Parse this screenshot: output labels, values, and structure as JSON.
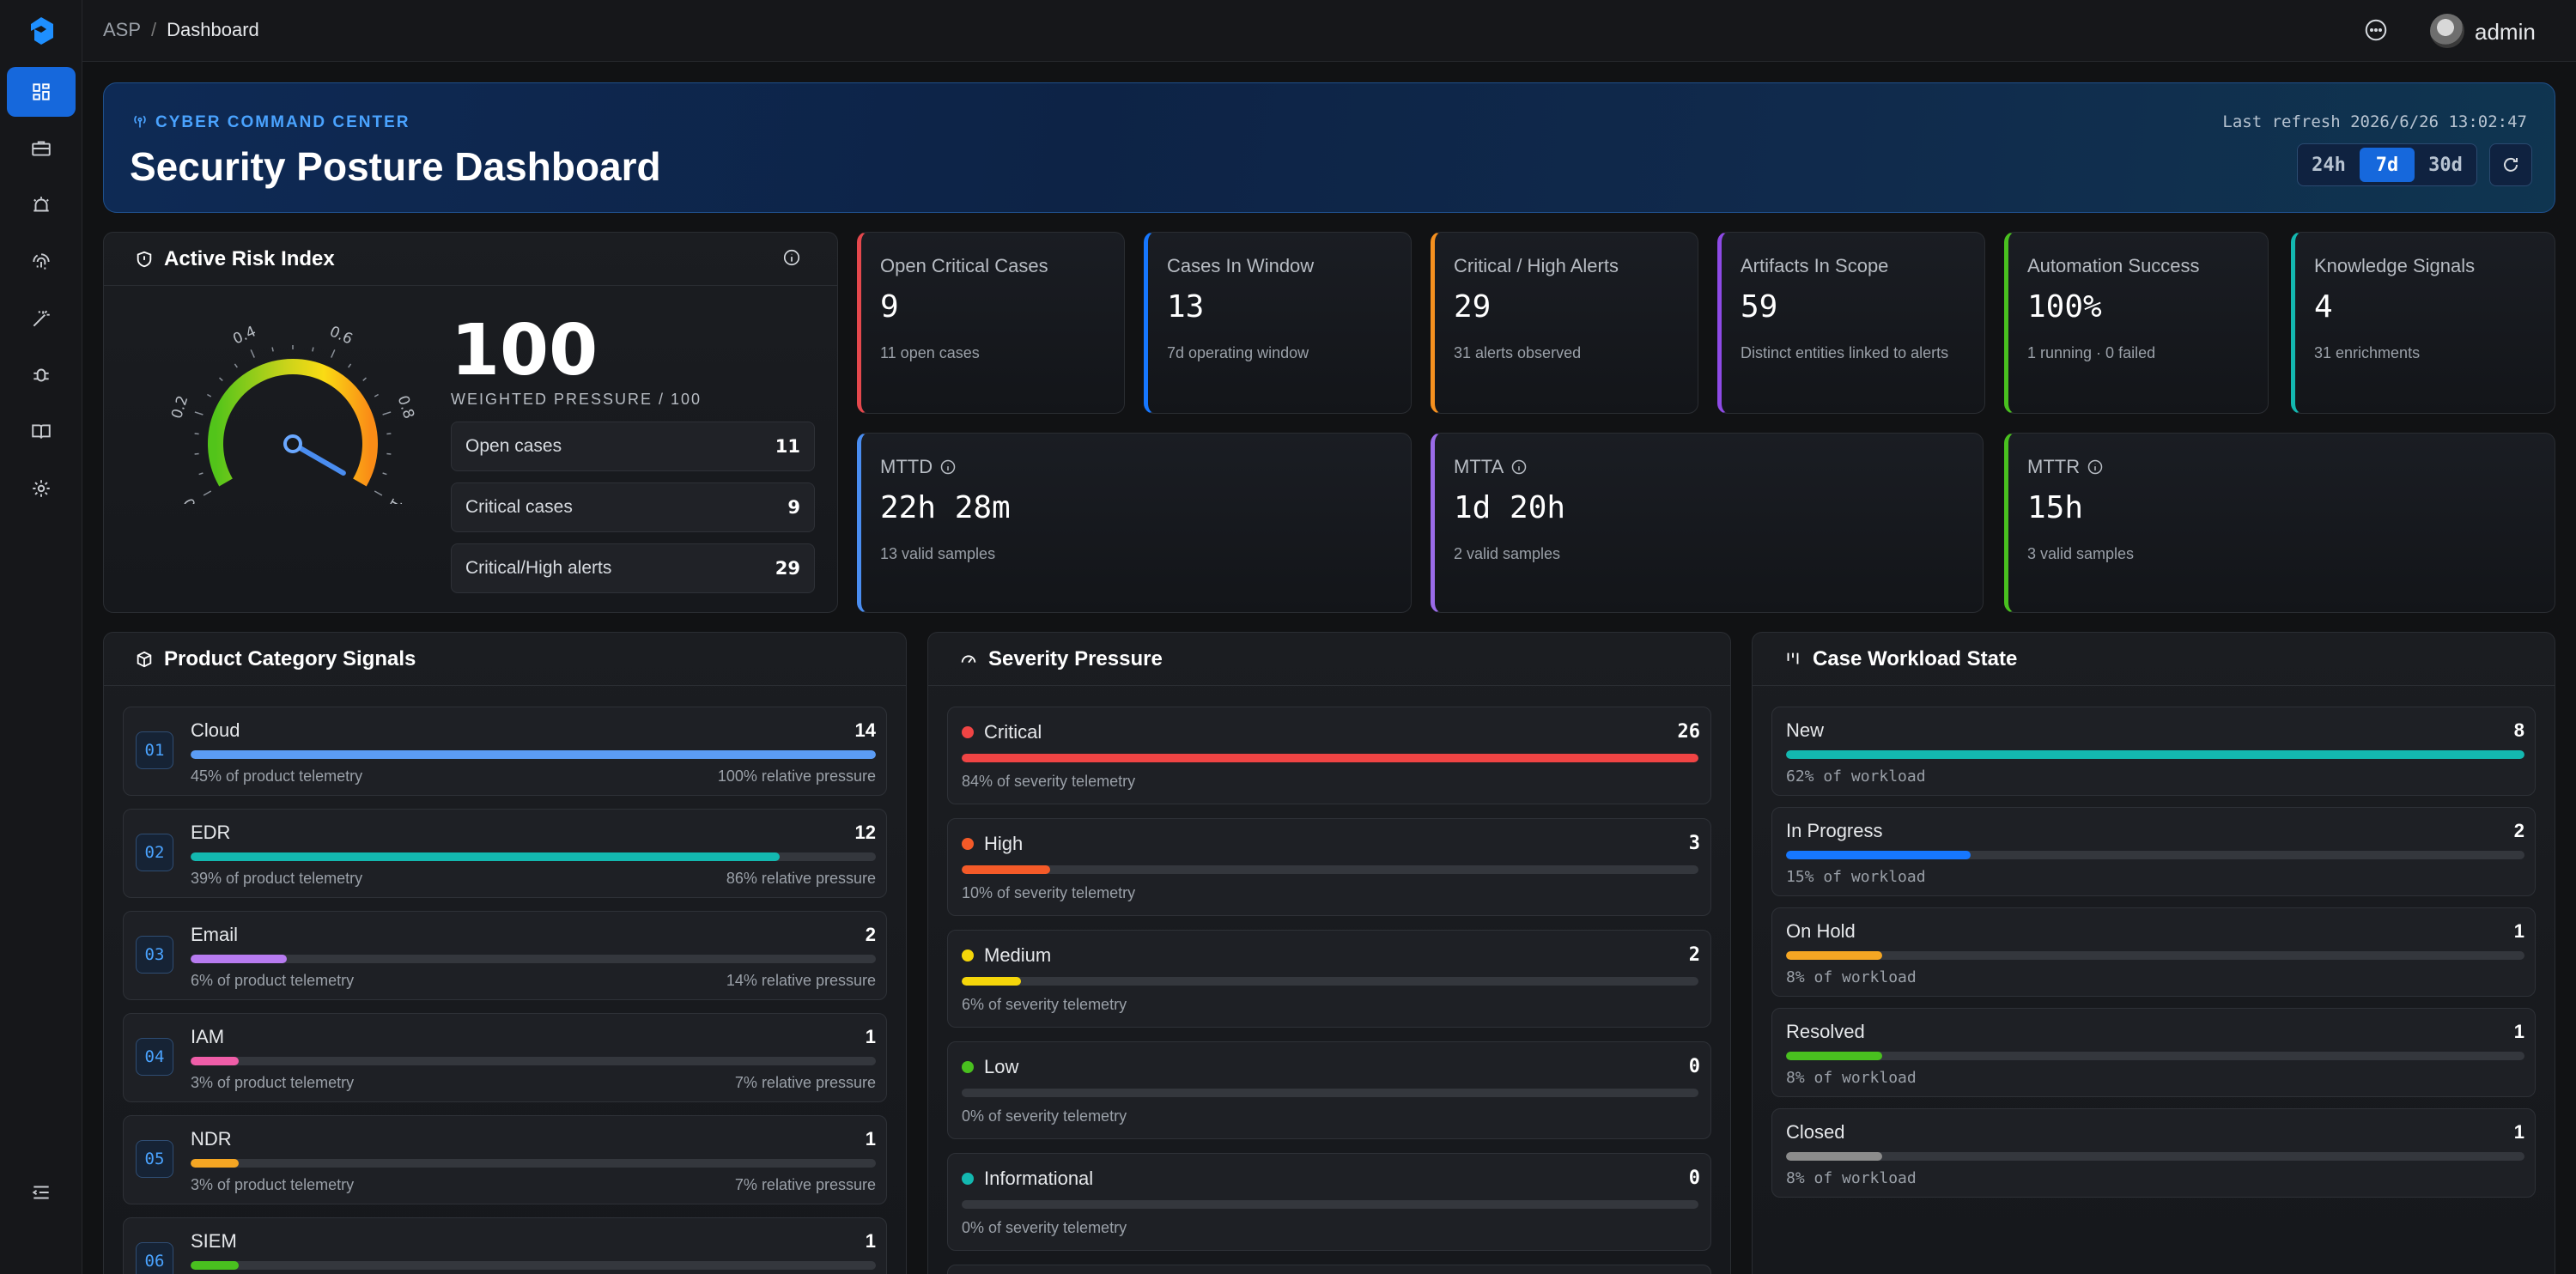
{
  "breadcrumb": {
    "root": "ASP",
    "separator": "/",
    "current": "Dashboard"
  },
  "user": {
    "name": "admin"
  },
  "hero": {
    "kicker": "CYBER COMMAND CENTER",
    "title": "Security Posture Dashboard",
    "last_refresh": "Last refresh 2026/6/26 13:02:47",
    "ranges": [
      "24h",
      "7d",
      "30d"
    ],
    "active_range": "7d"
  },
  "risk": {
    "title": "Active Risk Index",
    "value": "100",
    "subtitle": "WEIGHTED PRESSURE / 100",
    "gauge_ticks": [
      "0",
      "0.2",
      "0.4",
      "0.6",
      "0.8",
      "1"
    ],
    "gauge_level": 1.0,
    "rows": [
      {
        "label": "Open cases",
        "value": "11"
      },
      {
        "label": "Critical cases",
        "value": "9"
      },
      {
        "label": "Critical/High alerts",
        "value": "29"
      }
    ]
  },
  "stats": [
    {
      "label": "Open Critical Cases",
      "value": "9",
      "sub": "11 open cases",
      "color": "#e5484d"
    },
    {
      "label": "Cases In Window",
      "value": "13",
      "sub": "7d operating window",
      "color": "#1677ff"
    },
    {
      "label": "Critical / High Alerts",
      "value": "29",
      "sub": "31 alerts observed",
      "color": "#f5901f"
    },
    {
      "label": "Artifacts In Scope",
      "value": "59",
      "sub": "Distinct entities linked to alerts",
      "color": "#8e4ae6"
    },
    {
      "label": "Automation Success",
      "value": "100%",
      "sub": "1 running · 0 failed",
      "color": "#49c01f"
    },
    {
      "label": "Knowledge Signals",
      "value": "4",
      "sub": "31 enrichments",
      "color": "#13b8b0"
    }
  ],
  "metrics": [
    {
      "label": "MTTD",
      "value": "22h 28m",
      "sub": "13 valid samples",
      "color": "#4a8df0"
    },
    {
      "label": "MTTA",
      "value": "1d 20h",
      "sub": "2 valid samples",
      "color": "#9a6be8"
    },
    {
      "label": "MTTR",
      "value": "15h",
      "sub": "3 valid samples",
      "color": "#49c01f"
    }
  ],
  "product": {
    "title": "Product Category Signals",
    "items": [
      {
        "num": "01",
        "name": "Cloud",
        "count": "14",
        "share": "45% of product telemetry",
        "relative": "100% relative pressure",
        "level": 1.0,
        "color": "#5b9cf5"
      },
      {
        "num": "02",
        "name": "EDR",
        "count": "12",
        "share": "39% of product telemetry",
        "relative": "86% relative pressure",
        "level": 0.86,
        "color": "#13b8b0"
      },
      {
        "num": "03",
        "name": "Email",
        "count": "2",
        "share": "6% of product telemetry",
        "relative": "14% relative pressure",
        "level": 0.14,
        "color": "#b77bf0"
      },
      {
        "num": "04",
        "name": "IAM",
        "count": "1",
        "share": "3% of product telemetry",
        "relative": "7% relative pressure",
        "level": 0.07,
        "color": "#ef5da8"
      },
      {
        "num": "05",
        "name": "NDR",
        "count": "1",
        "share": "3% of product telemetry",
        "relative": "7% relative pressure",
        "level": 0.07,
        "color": "#f5a623"
      },
      {
        "num": "06",
        "name": "SIEM",
        "count": "1",
        "share": "",
        "relative": "",
        "level": 0.07,
        "color": "#49c01f"
      }
    ]
  },
  "severity": {
    "title": "Severity Pressure",
    "items": [
      {
        "name": "Critical",
        "count": "26",
        "share": "84% of severity telemetry",
        "level": 1.0,
        "color": "#f04444"
      },
      {
        "name": "High",
        "count": "3",
        "share": "10% of severity telemetry",
        "level": 0.12,
        "color": "#f45a28"
      },
      {
        "name": "Medium",
        "count": "2",
        "share": "6% of severity telemetry",
        "level": 0.08,
        "color": "#f5d60a"
      },
      {
        "name": "Low",
        "count": "0",
        "share": "0% of severity telemetry",
        "level": 0,
        "color": "#49c01f"
      },
      {
        "name": "Informational",
        "count": "0",
        "share": "0% of severity telemetry",
        "level": 0,
        "color": "#13b8b0"
      }
    ]
  },
  "workload": {
    "title": "Case Workload State",
    "items": [
      {
        "name": "New",
        "count": "8",
        "share": "62% of workload",
        "level": 1.0,
        "color": "#13b8b0"
      },
      {
        "name": "In Progress",
        "count": "2",
        "share": "15% of workload",
        "level": 0.25,
        "color": "#1677ff"
      },
      {
        "name": "On Hold",
        "count": "1",
        "share": "8% of workload",
        "level": 0.13,
        "color": "#f5a623"
      },
      {
        "name": "Resolved",
        "count": "1",
        "share": "8% of workload",
        "level": 0.13,
        "color": "#49c01f"
      },
      {
        "name": "Closed",
        "count": "1",
        "share": "8% of workload",
        "level": 0.13,
        "color": "#8c8c8c"
      }
    ]
  }
}
